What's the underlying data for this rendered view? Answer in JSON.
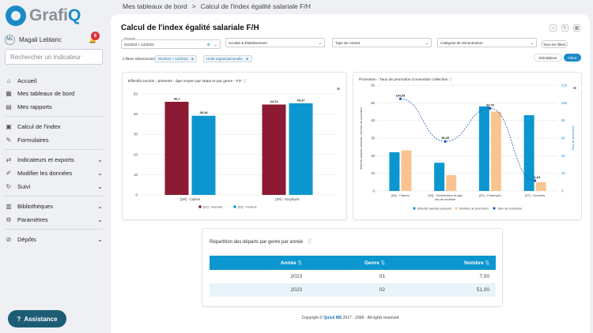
{
  "brand": {
    "prefix": "Grafi",
    "suffix": "Q"
  },
  "user": {
    "initials": "ML",
    "name": "Magali Leblanc",
    "notifications": "6"
  },
  "search": {
    "placeholder": "Rechercher un indicateur"
  },
  "nav": [
    {
      "label": "Accueil",
      "icon": "home-icon"
    },
    {
      "label": "Mes tableaux de bord",
      "icon": "dashboard-icon"
    },
    {
      "label": "Mes rapports",
      "icon": "report-icon"
    },
    {
      "label": "Calcul de l'index",
      "icon": "calculator-icon"
    },
    {
      "label": "Formulaires",
      "icon": "form-icon"
    },
    {
      "label": "Indicateurs et exports",
      "icon": "indicator-icon"
    },
    {
      "label": "Modifier les données",
      "icon": "edit-icon"
    },
    {
      "label": "Suivi",
      "icon": "follow-icon"
    },
    {
      "label": "Bibliothèques",
      "icon": "library-icon"
    },
    {
      "label": "Paramètres",
      "icon": "settings-icon"
    },
    {
      "label": "Dépôts",
      "icon": "deposit-icon"
    }
  ],
  "assistance": "Assistance",
  "breadcrumb": {
    "first": "Mes tableaux de bord",
    "sep": ">",
    "current": "Calcul de l'index égalité salariale F/H"
  },
  "page": {
    "title": "Calcul de l'index égalité salariale F/H"
  },
  "filters": {
    "periode_label": "Période",
    "periode_value": "01/2023 > 12/2023",
    "societe": "Société & Établissement",
    "contrat": "Type de contrat",
    "categorie": "Catégorie de rémunération",
    "all_filters": "Tous les filtres",
    "selected_count": "2 filtres sélectionnés :",
    "chip_periode": "01/2023 > 12/2023",
    "chip_unite": "Unité organisationnelle",
    "reset": "Réinitialiser",
    "apply": "Filtrer"
  },
  "colors": {
    "primary": "#1b8ac9",
    "maroon": "#8b1a32",
    "blue": "#0c96cf",
    "peach": "#f9c48f",
    "badge": "#d9303b"
  },
  "chart_data": [
    {
      "type": "bar",
      "title": "Effectifs inscrits - présents - âge moyen par statut et par genre - F/F",
      "categories": [
        "[SR] - Cadres",
        "[SR] - Employés"
      ],
      "series": [
        {
          "name": "[01] - Homme",
          "values": [
            46.1,
            44.74
          ]
        },
        {
          "name": "[02] - Femme",
          "values": [
            39.18,
            45.37
          ]
        }
      ],
      "data_labels": [
        [
          "46,1",
          "39,18"
        ],
        [
          "44,74",
          "45,37"
        ]
      ],
      "ylim": [
        0,
        50
      ],
      "yticks": [
        "0",
        "10",
        "20",
        "30",
        "40",
        "50"
      ],
      "legend": "bottom",
      "grid": true
    },
    {
      "type": "bar",
      "title": "Promotion - Taux de promotion Convention collective",
      "ylabel": "Effectifs salariés présents / Nombre de promotion",
      "y2label": "Taux de promotion",
      "categories": [
        "[04] - Cadres",
        "[03] - Techniciens et agents de maîtrise",
        "[02] - Employés",
        "[07] - Ouvriers"
      ],
      "series": [
        {
          "name": "Effectifs salariés présents",
          "type": "bar",
          "values": [
            22,
            16,
            48,
            43
          ]
        },
        {
          "name": "Nombre de promotion",
          "type": "bar",
          "values": [
            23,
            9,
            45,
            5
          ]
        },
        {
          "name": "Taux de promotion",
          "type": "line",
          "axis": "right",
          "values": [
            104.55,
            56.25,
            93.75,
            11.63
          ]
        }
      ],
      "line_labels": [
        "104,55",
        "56,25",
        "93,75",
        "11,63"
      ],
      "ylim": [
        0,
        60
      ],
      "yticks": [
        "0",
        "10",
        "20",
        "30",
        "40",
        "50",
        "60"
      ],
      "y2lim": [
        0,
        120
      ],
      "y2ticks": [
        "0",
        "20",
        "40",
        "60",
        "80",
        "100",
        "120"
      ],
      "legend": "bottom",
      "grid": true
    }
  ],
  "table": {
    "title": "Répartition des départs par genre par année",
    "headers": [
      "Année",
      "Genre",
      "Nombre"
    ],
    "rows": [
      [
        "2023",
        "01",
        "7,00"
      ],
      [
        "2023",
        "02",
        "51,00"
      ]
    ]
  },
  "footer": {
    "prefix": "Copyright ©",
    "brand": "Quick MS",
    "suffix": "2017 - 2099 - All rights reserved"
  }
}
